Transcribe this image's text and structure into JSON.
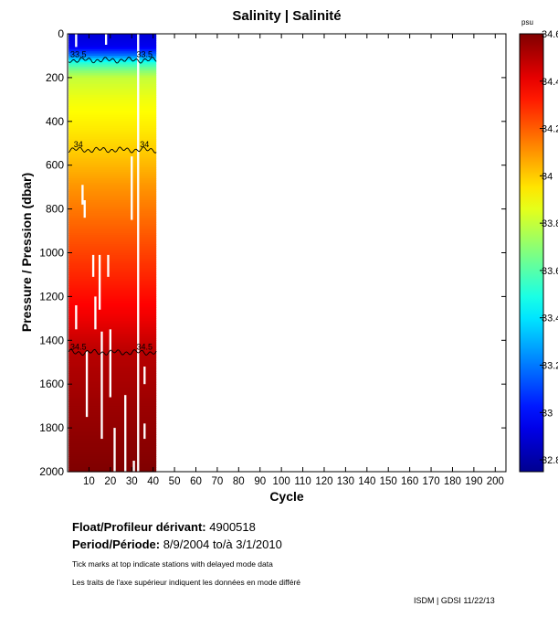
{
  "chart_data": {
    "type": "heatmap",
    "title": "Salinity | Salinité",
    "xlabel": "Cycle",
    "ylabel": "Pressure / Pression (dbar)",
    "xlim": [
      0,
      205
    ],
    "ylim": [
      2000,
      0
    ],
    "x_ticks": [
      10,
      20,
      30,
      40,
      50,
      60,
      70,
      80,
      90,
      100,
      110,
      120,
      130,
      140,
      150,
      160,
      170,
      180,
      190,
      200
    ],
    "y_ticks": [
      0,
      200,
      400,
      600,
      800,
      1000,
      1200,
      1400,
      1600,
      1800,
      2000
    ],
    "data_cycle_range": [
      1,
      41
    ],
    "colorbar": {
      "unit": "psu",
      "min": 32.75,
      "max": 34.6,
      "tick_values": [
        32.8,
        33,
        33.2,
        33.4,
        33.6,
        33.8,
        34,
        34.2,
        34.4,
        34.6
      ],
      "tick_labels": [
        "32.8",
        "33",
        "33.2",
        "33.4",
        "33.6",
        "33.8",
        "34",
        "34.2",
        "34.4",
        "34.6"
      ]
    },
    "salinity_profile": [
      {
        "p": 0,
        "s": 32.9
      },
      {
        "p": 60,
        "s": 32.95
      },
      {
        "p": 100,
        "s": 33.2
      },
      {
        "p": 130,
        "s": 33.5
      },
      {
        "p": 160,
        "s": 33.65
      },
      {
        "p": 200,
        "s": 33.8
      },
      {
        "p": 300,
        "s": 33.88
      },
      {
        "p": 450,
        "s": 33.95
      },
      {
        "p": 540,
        "s": 34.0
      },
      {
        "p": 700,
        "s": 34.1
      },
      {
        "p": 900,
        "s": 34.2
      },
      {
        "p": 1100,
        "s": 34.3
      },
      {
        "p": 1300,
        "s": 34.4
      },
      {
        "p": 1460,
        "s": 34.5
      },
      {
        "p": 1700,
        "s": 34.55
      },
      {
        "p": 2000,
        "s": 34.6
      }
    ],
    "contours": [
      {
        "level": 33.5,
        "label": "33.5",
        "pressure": 120
      },
      {
        "level": 34,
        "label": "34",
        "pressure": 530
      },
      {
        "level": 34.5,
        "label": "34.5",
        "pressure": 1455
      }
    ],
    "missing_cycles": [
      33
    ],
    "data_gaps": [
      {
        "cycle": 7,
        "p0": 690,
        "p1": 780
      },
      {
        "cycle": 8,
        "p0": 760,
        "p1": 840
      },
      {
        "cycle": 4,
        "p0": 1240,
        "p1": 1350
      },
      {
        "cycle": 12,
        "p0": 1010,
        "p1": 1110
      },
      {
        "cycle": 15,
        "p0": 1010,
        "p1": 1260
      },
      {
        "cycle": 19,
        "p0": 1010,
        "p1": 1110
      },
      {
        "cycle": 9,
        "p0": 1450,
        "p1": 1750
      },
      {
        "cycle": 13,
        "p0": 1200,
        "p1": 1350
      },
      {
        "cycle": 16,
        "p0": 1360,
        "p1": 1850
      },
      {
        "cycle": 20,
        "p0": 1350,
        "p1": 1660
      },
      {
        "cycle": 22,
        "p0": 1800,
        "p1": 2000
      },
      {
        "cycle": 27,
        "p0": 1650,
        "p1": 2000
      },
      {
        "cycle": 30,
        "p0": 560,
        "p1": 850
      },
      {
        "cycle": 31,
        "p0": 1950,
        "p1": 2000
      },
      {
        "cycle": 36,
        "p0": 1520,
        "p1": 1600
      },
      {
        "cycle": 36,
        "p0": 1780,
        "p1": 1850
      },
      {
        "cycle": 4,
        "p0": 0,
        "p1": 60
      },
      {
        "cycle": 18,
        "p0": 0,
        "p1": 50
      }
    ]
  },
  "info": {
    "float_label": "Float/Profileur dérivant:",
    "float_id": "4900518",
    "period_label": "Period/Période:",
    "period_start": "8/9/2004",
    "period_sep": "to/à",
    "period_end": "3/1/2010",
    "note_en": "Tick marks at top indicate stations with delayed mode data",
    "note_fr": "Les traits de l'axe supérieur indiquent les données en mode différé",
    "stamp": "ISDM | GDSI  11/22/13"
  }
}
